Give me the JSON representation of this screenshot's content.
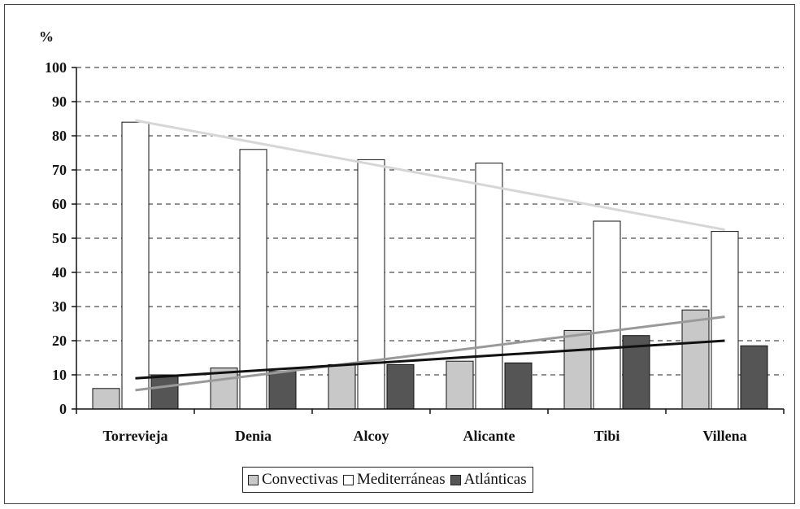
{
  "chart_data": {
    "type": "bar",
    "ylabel": "%",
    "ylim": [
      0,
      100
    ],
    "yticks": [
      0,
      10,
      20,
      30,
      40,
      50,
      60,
      70,
      80,
      90,
      100
    ],
    "grid": "horizontal-dashed",
    "legend_position": "bottom",
    "categories": [
      "Torrevieja",
      "Denia",
      "Alcoy",
      "Alicante",
      "Tibi",
      "Villena"
    ],
    "series": [
      {
        "name": "Convectivas",
        "color": "#c8c8c8",
        "values": [
          6,
          12,
          13,
          14,
          23,
          29
        ]
      },
      {
        "name": "Mediterráneas",
        "color": "#ffffff",
        "values": [
          84,
          76,
          73,
          72,
          55,
          52
        ]
      },
      {
        "name": "Atlánticas",
        "color": "#555555",
        "values": [
          10,
          11,
          13,
          13.5,
          21.5,
          18.5
        ]
      }
    ],
    "trendlines": [
      {
        "series": "Mediterráneas",
        "color": "#d6d6d6",
        "start": 84.5,
        "end": 52.5
      },
      {
        "series": "Convectivas",
        "color": "#999999",
        "start": 5.5,
        "end": 27
      },
      {
        "series": "Atlánticas",
        "color": "#111111",
        "start": 9,
        "end": 20
      }
    ]
  }
}
